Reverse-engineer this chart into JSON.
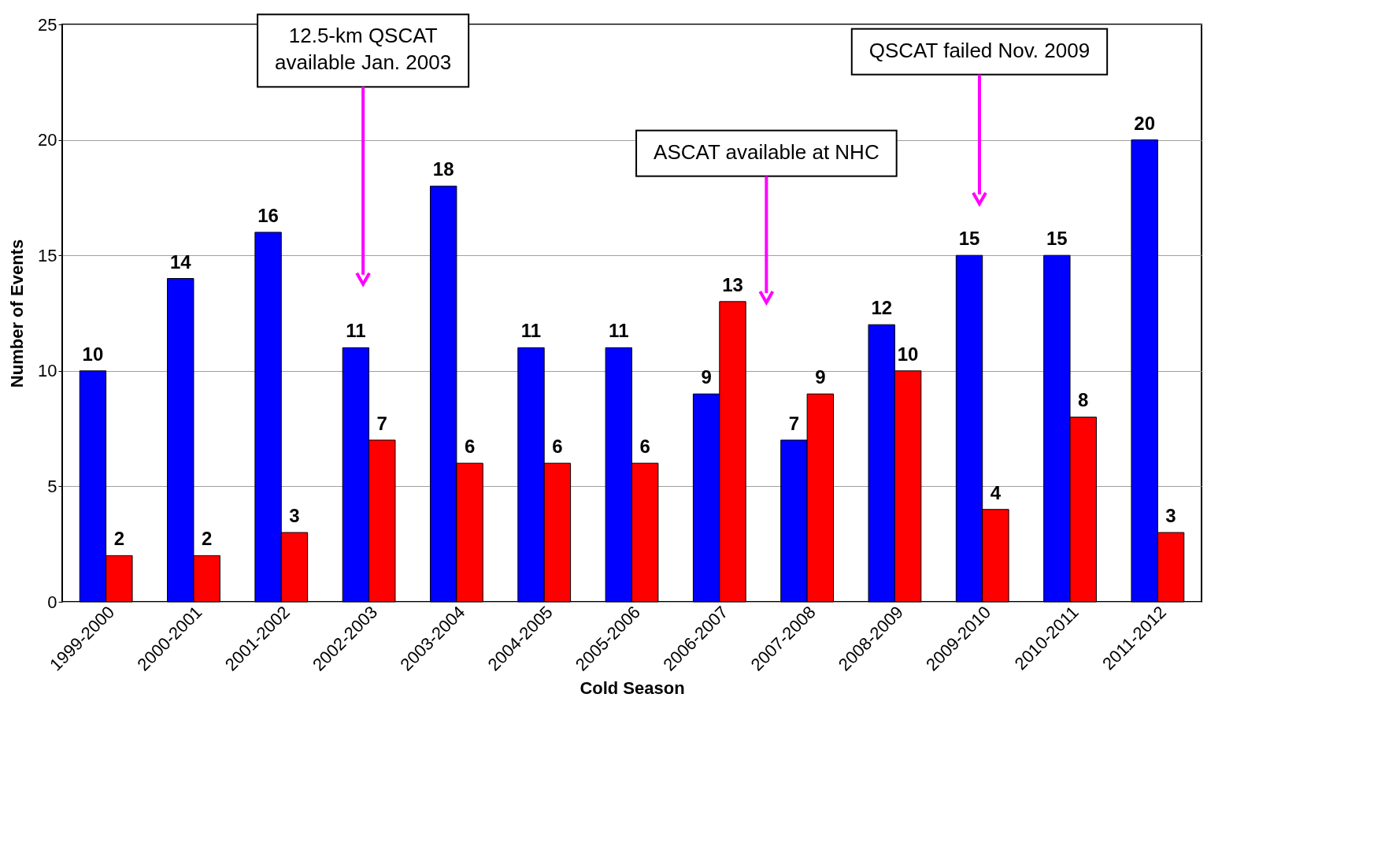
{
  "chart_data": {
    "type": "bar",
    "xlabel": "Cold Season",
    "ylabel": "Number of Events",
    "categories": [
      "1999-2000",
      "2000-2001",
      "2001-2002",
      "2002-2003",
      "2003-2004",
      "2004-2005",
      "2005-2006",
      "2006-2007",
      "2007-2008",
      "2008-2009",
      "2009-2010",
      "2010-2011",
      "2011-2012"
    ],
    "series": [
      {
        "color": "#0000ff",
        "values": [
          10,
          14,
          16,
          11,
          18,
          11,
          11,
          9,
          7,
          12,
          15,
          15,
          20
        ]
      },
      {
        "color": "#ff0000",
        "values": [
          2,
          2,
          3,
          7,
          6,
          6,
          6,
          13,
          9,
          10,
          4,
          8,
          3
        ]
      }
    ],
    "ylim": [
      0,
      25
    ],
    "yticks": [
      0,
      5,
      10,
      15,
      20,
      25
    ],
    "grid": "y",
    "legend": false,
    "data_labels": true,
    "annotations": [
      "12.5-km QSCAT\navailable Jan. 2003",
      "ASCAT available at NHC",
      "QSCAT failed Nov. 2009"
    ]
  }
}
